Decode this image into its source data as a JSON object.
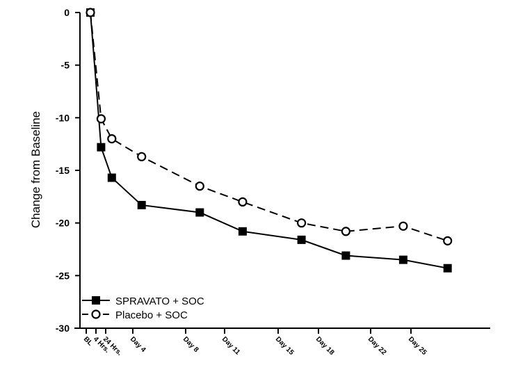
{
  "chart_data": {
    "type": "line",
    "title": "",
    "xlabel": "",
    "ylabel": "Change from Baseline",
    "ylim": [
      -30,
      0
    ],
    "yticks": [
      0,
      -5,
      -10,
      -15,
      -20,
      -25,
      -30
    ],
    "ytick_labels": [
      "0",
      "-5",
      "-10",
      "-15",
      "-20",
      "-25",
      "-30"
    ],
    "categories": [
      "BL",
      "4 Hrs.",
      "24 Hrs.",
      "Day 4",
      "Day 8",
      "Day 11",
      "Day 15",
      "Day 18",
      "Day 22",
      "Day 25"
    ],
    "x_days": [
      0,
      0.17,
      1,
      4,
      8,
      11,
      15,
      18,
      22,
      25
    ],
    "grid": false,
    "legend_position": "bottom-left",
    "series": [
      {
        "name": "SPRAVATO + SOC",
        "marker": "filled-square",
        "line": "solid",
        "values": [
          0,
          -12.8,
          -15.7,
          -18.3,
          -19.0,
          -20.8,
          -21.6,
          -23.1,
          -23.5,
          -24.3
        ]
      },
      {
        "name": "Placebo + SOC",
        "marker": "open-circle",
        "line": "dashed",
        "values": [
          0,
          -10.1,
          -12.0,
          -13.7,
          -16.5,
          -18.0,
          -20.0,
          -20.8,
          -20.3,
          -21.7
        ]
      }
    ]
  }
}
